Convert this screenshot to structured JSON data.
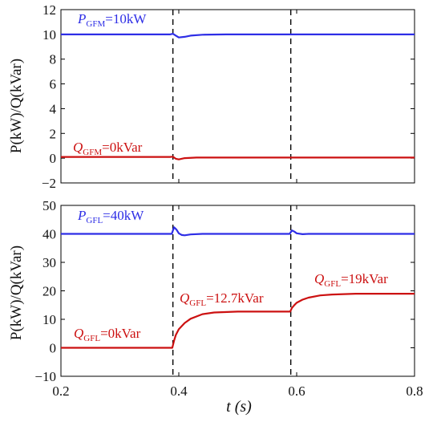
{
  "chart_data": [
    {
      "type": "line",
      "ylabel": "P(kW)/Q(kVar)",
      "xlim": [
        0.2,
        0.8
      ],
      "ylim": [
        -2,
        12
      ],
      "yticks": [
        "−2",
        "0",
        "2",
        "4",
        "6",
        "8",
        "10",
        "12"
      ],
      "xticks_shown": false,
      "vlines": [
        0.39,
        0.59
      ],
      "series": [
        {
          "name": "P_GFM",
          "color": "#2e2ee6",
          "x": [
            0.2,
            0.385,
            0.39,
            0.395,
            0.4,
            0.41,
            0.42,
            0.44,
            0.48,
            0.59,
            0.6,
            0.8
          ],
          "y": [
            10.0,
            10.0,
            10.05,
            9.9,
            9.75,
            9.8,
            9.9,
            9.97,
            10.0,
            10.0,
            10.0,
            10.0
          ]
        },
        {
          "name": "Q_GFM",
          "color": "#cc1111",
          "x": [
            0.2,
            0.385,
            0.39,
            0.395,
            0.4,
            0.41,
            0.43,
            0.8
          ],
          "y": [
            0.1,
            0.1,
            0.12,
            -0.05,
            -0.1,
            0.0,
            0.05,
            0.05
          ]
        }
      ],
      "annotations": [
        {
          "main": "P",
          "sub": "GFM",
          "rest": "=10kW",
          "color": "#2e2ee6"
        },
        {
          "main": "Q",
          "sub": "GFM",
          "rest": "=0kVar",
          "color": "#cc1111"
        }
      ]
    },
    {
      "type": "line",
      "ylabel": "P(kW)/Q(kVar)",
      "xlabel": "t (s)",
      "xlim": [
        0.2,
        0.8
      ],
      "ylim": [
        -10,
        50
      ],
      "yticks": [
        "−10",
        "0",
        "10",
        "20",
        "30",
        "40",
        "50"
      ],
      "xticks": [
        "0.2",
        "0.4",
        "0.6",
        "0.8"
      ],
      "vlines": [
        0.39,
        0.59
      ],
      "series": [
        {
          "name": "P_GFL",
          "color": "#2e2ee6",
          "x": [
            0.2,
            0.388,
            0.392,
            0.396,
            0.4,
            0.405,
            0.41,
            0.42,
            0.44,
            0.588,
            0.592,
            0.596,
            0.6,
            0.61,
            0.62,
            0.8
          ],
          "y": [
            40,
            40,
            42.3,
            41.5,
            40.2,
            39.6,
            39.5,
            39.8,
            40,
            40,
            41.2,
            40.8,
            40.2,
            39.9,
            40,
            40
          ]
        },
        {
          "name": "Q_GFL",
          "color": "#cc1111",
          "x": [
            0.2,
            0.389,
            0.392,
            0.395,
            0.4,
            0.41,
            0.42,
            0.44,
            0.46,
            0.5,
            0.55,
            0.589,
            0.592,
            0.596,
            0.6,
            0.61,
            0.62,
            0.64,
            0.66,
            0.7,
            0.75,
            0.8
          ],
          "y": [
            0,
            0,
            2.5,
            4.5,
            6.5,
            8.7,
            10.2,
            11.8,
            12.4,
            12.7,
            12.7,
            12.7,
            14.0,
            15.0,
            15.8,
            16.9,
            17.6,
            18.4,
            18.7,
            19.0,
            19.0,
            19.0
          ]
        }
      ],
      "annotations": [
        {
          "main": "P",
          "sub": "GFL",
          "rest": "=40kW",
          "color": "#2e2ee6"
        },
        {
          "main": "Q",
          "sub": "GFL",
          "rest": "=0kVar",
          "color": "#cc1111"
        },
        {
          "main": "Q",
          "sub": "GFL",
          "rest": "=12.7kVar",
          "color": "#cc1111"
        },
        {
          "main": "Q",
          "sub": "GFL",
          "rest": "=19kVar",
          "color": "#cc1111"
        }
      ]
    }
  ]
}
